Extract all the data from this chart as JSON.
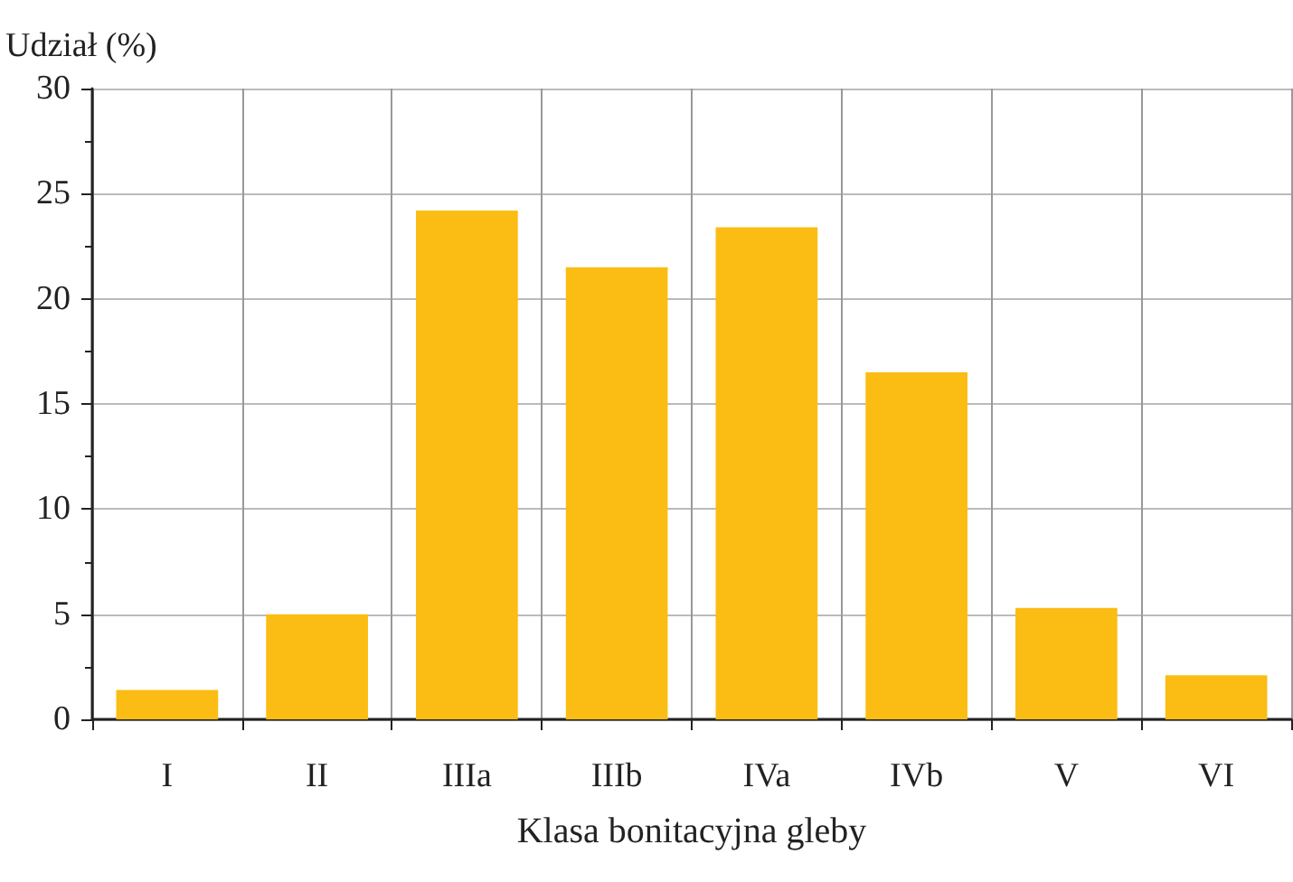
{
  "chart_data": {
    "type": "bar",
    "xlabel": "Klasa bonitacyjna gleby",
    "ylabel": "Udział (%)",
    "categories": [
      "I",
      "II",
      "IIIa",
      "IIIb",
      "IVa",
      "IVb",
      "V",
      "VI"
    ],
    "values": [
      1.4,
      5.0,
      24.2,
      21.5,
      23.4,
      16.5,
      5.3,
      2.1
    ],
    "color": "#fbbc14",
    "ylim": [
      0,
      30
    ],
    "yticks": [
      0,
      5,
      10,
      15,
      20,
      25,
      30
    ],
    "grid": true
  }
}
